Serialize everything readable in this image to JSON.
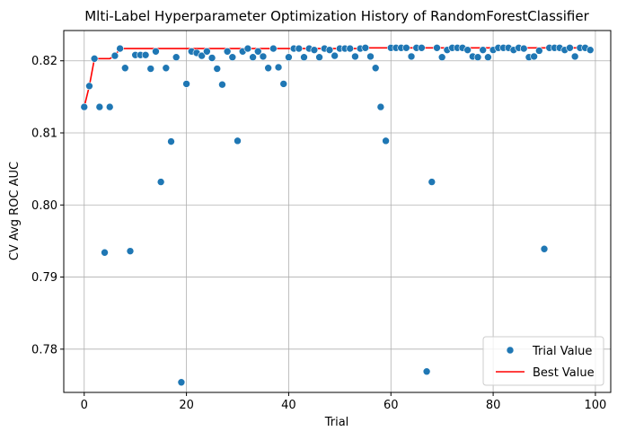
{
  "chart_data": {
    "type": "scatter",
    "title": "Mlti-Label Hyperparameter Optimization History of RandomForestClassifier",
    "xlabel": "Trial",
    "ylabel": "CV Avg ROC AUC",
    "xlim": [
      -4,
      103
    ],
    "ylim": [
      0.774,
      0.8242
    ],
    "xticks": [
      0,
      20,
      40,
      60,
      80,
      100
    ],
    "yticks": [
      0.78,
      0.79,
      0.8,
      0.81,
      0.82
    ],
    "ytick_labels": [
      "0.78",
      "0.79",
      "0.80",
      "0.81",
      "0.82"
    ],
    "grid": true,
    "legend_position": "lower right",
    "series": [
      {
        "name": "Trial Value",
        "kind": "scatter",
        "color": "#1f77b4",
        "x": [
          0,
          1,
          2,
          3,
          4,
          5,
          6,
          7,
          8,
          9,
          10,
          11,
          12,
          13,
          14,
          15,
          16,
          17,
          18,
          19,
          20,
          21,
          22,
          23,
          24,
          25,
          26,
          27,
          28,
          29,
          30,
          31,
          32,
          33,
          34,
          35,
          36,
          37,
          38,
          39,
          40,
          41,
          42,
          43,
          44,
          45,
          46,
          47,
          48,
          49,
          50,
          51,
          52,
          53,
          54,
          55,
          56,
          57,
          58,
          59,
          60,
          61,
          62,
          63,
          64,
          65,
          66,
          67,
          68,
          69,
          70,
          71,
          72,
          73,
          74,
          75,
          76,
          77,
          78,
          79,
          80,
          81,
          82,
          83,
          84,
          85,
          86,
          87,
          88,
          89,
          90,
          91,
          92,
          93,
          94,
          95,
          96,
          97,
          98,
          99
        ],
        "y": [
          0.8136,
          0.8165,
          0.8203,
          0.8136,
          0.7934,
          0.8136,
          0.8207,
          0.8217,
          0.819,
          0.7936,
          0.8208,
          0.8208,
          0.8208,
          0.8189,
          0.8213,
          0.8032,
          0.819,
          0.8088,
          0.8205,
          0.7754,
          0.8168,
          0.8213,
          0.8211,
          0.8207,
          0.8213,
          0.8204,
          0.8189,
          0.8167,
          0.8213,
          0.8205,
          0.8089,
          0.8213,
          0.8217,
          0.8205,
          0.8213,
          0.8206,
          0.819,
          0.8217,
          0.8191,
          0.8168,
          0.8205,
          0.8217,
          0.8217,
          0.8205,
          0.8217,
          0.8215,
          0.8205,
          0.8217,
          0.8215,
          0.8207,
          0.8217,
          0.8217,
          0.8217,
          0.8206,
          0.8217,
          0.8218,
          0.8206,
          0.819,
          0.8136,
          0.8089,
          0.8218,
          0.8218,
          0.8218,
          0.8218,
          0.8206,
          0.8218,
          0.8218,
          0.7769,
          0.8032,
          0.8218,
          0.8205,
          0.8215,
          0.8218,
          0.8218,
          0.8218,
          0.8215,
          0.8206,
          0.8205,
          0.8215,
          0.8205,
          0.8215,
          0.8218,
          0.8218,
          0.8218,
          0.8215,
          0.8218,
          0.8217,
          0.8205,
          0.8206,
          0.8214,
          0.7939,
          0.8218,
          0.8218,
          0.8218,
          0.8215,
          0.8218,
          0.8206,
          0.8218,
          0.8218,
          0.8215
        ]
      },
      {
        "name": "Best Value",
        "kind": "line",
        "color": "#ff0000",
        "x": [
          0,
          1,
          2,
          3,
          4,
          5,
          6,
          7,
          8,
          9,
          10,
          11,
          12,
          13,
          14,
          15,
          16,
          17,
          18,
          19,
          20,
          21,
          22,
          23,
          24,
          25,
          26,
          27,
          28,
          29,
          30,
          31,
          32,
          33,
          34,
          35,
          36,
          37,
          38,
          39,
          40,
          41,
          42,
          43,
          44,
          45,
          46,
          47,
          48,
          49,
          50,
          51,
          52,
          53,
          54,
          55,
          56,
          57,
          58,
          59,
          60,
          61,
          62,
          63,
          64,
          65,
          66,
          67,
          68,
          69,
          70,
          71,
          72,
          73,
          74,
          75,
          76,
          77,
          78,
          79,
          80,
          81,
          82,
          83,
          84,
          85,
          86,
          87,
          88,
          89,
          90,
          91,
          92,
          93,
          94,
          95,
          96,
          97,
          98,
          99
        ],
        "y": [
          0.8136,
          0.8165,
          0.8203,
          0.8203,
          0.8203,
          0.8203,
          0.8207,
          0.8217,
          0.8217,
          0.8217,
          0.8217,
          0.8217,
          0.8217,
          0.8217,
          0.8217,
          0.8217,
          0.8217,
          0.8217,
          0.8217,
          0.8217,
          0.8217,
          0.8217,
          0.8217,
          0.8217,
          0.8217,
          0.8217,
          0.8217,
          0.8217,
          0.8217,
          0.8217,
          0.8217,
          0.8217,
          0.8217,
          0.8217,
          0.8217,
          0.8217,
          0.8217,
          0.8217,
          0.8217,
          0.8217,
          0.8217,
          0.8217,
          0.8217,
          0.8217,
          0.8217,
          0.8217,
          0.8217,
          0.8217,
          0.8217,
          0.8217,
          0.8217,
          0.8217,
          0.8217,
          0.8217,
          0.8217,
          0.8218,
          0.8218,
          0.8218,
          0.8218,
          0.8218,
          0.8218,
          0.8218,
          0.8218,
          0.8218,
          0.8218,
          0.8218,
          0.8218,
          0.8218,
          0.8218,
          0.8218,
          0.8218,
          0.8218,
          0.8218,
          0.8218,
          0.8218,
          0.8218,
          0.8218,
          0.8218,
          0.8218,
          0.8218,
          0.8218,
          0.8218,
          0.8218,
          0.8218,
          0.8218,
          0.8218,
          0.8218,
          0.8218,
          0.8218,
          0.8218,
          0.8218,
          0.8218,
          0.8218,
          0.8218,
          0.8218,
          0.8218,
          0.8218,
          0.8218,
          0.8218,
          0.8218
        ]
      }
    ]
  }
}
